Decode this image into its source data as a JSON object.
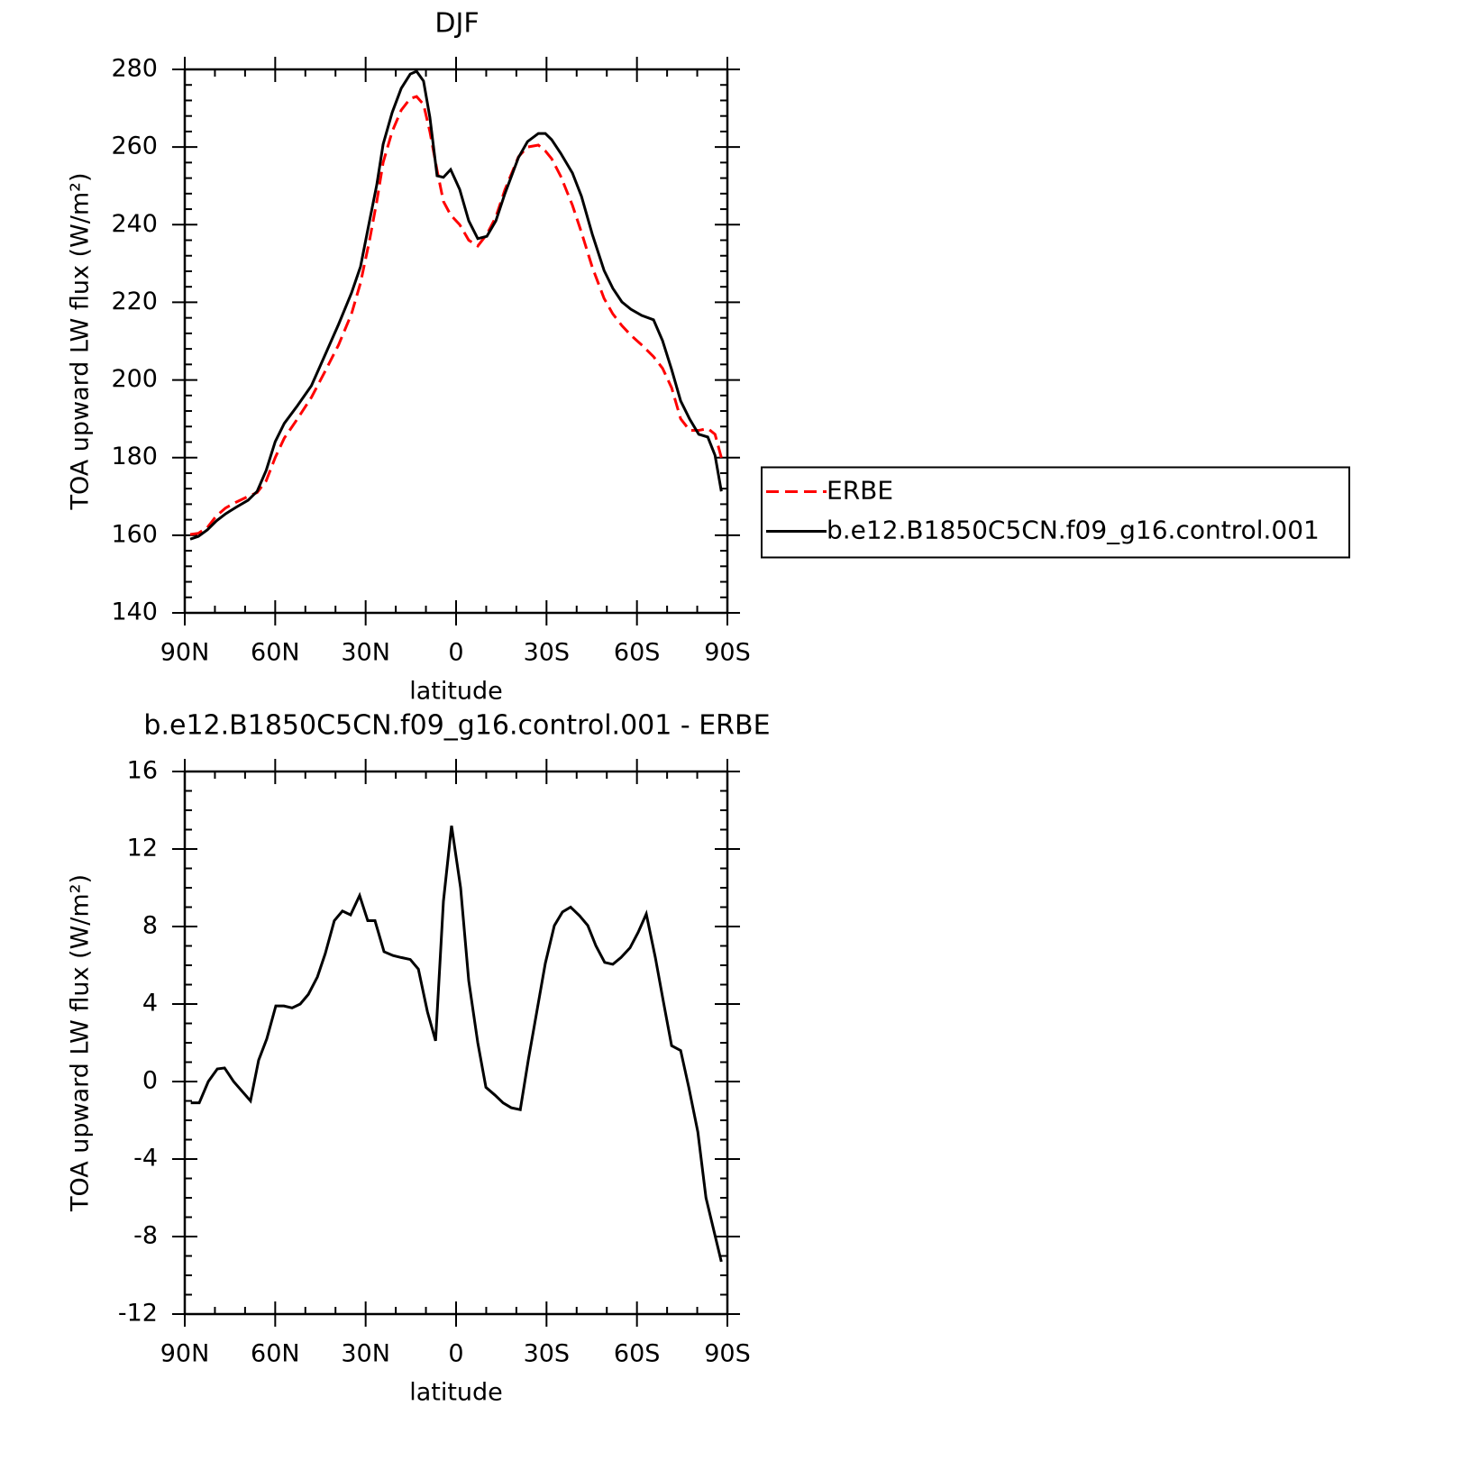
{
  "chart_data": [
    {
      "type": "line",
      "title": "DJF",
      "xlabel": "latitude",
      "ylabel": "TOA upward LW flux (W/m²)",
      "x": [
        88.2,
        85.5,
        82.5,
        79.5,
        76.5,
        73,
        69,
        66,
        63,
        60,
        57,
        52.6,
        48,
        43.6,
        39,
        34.7,
        31.7,
        28.7,
        26.3,
        24.2,
        21.2,
        18.2,
        15.2,
        13.1,
        10.8,
        8.7,
        6.3,
        4.2,
        1.8,
        -1.2,
        -4.2,
        -7.2,
        -10.2,
        -13.2,
        -16.2,
        -20.7,
        -23.7,
        -27.3,
        -29.6,
        -31.7,
        -34.7,
        -38.6,
        -41.6,
        -45.2,
        -49.1,
        -52,
        -55,
        -58,
        -61.6,
        -65.5,
        -68.5,
        -71.5,
        -74.5,
        -77.5,
        -80.5,
        -83.5,
        -85.9,
        -88
      ],
      "series": [
        {
          "name": "ERBE",
          "color": "#ff0000",
          "dash": true,
          "values": [
            160.2,
            160.5,
            162,
            165,
            167,
            168.5,
            170,
            171,
            174,
            180,
            185,
            190,
            195.5,
            202,
            209,
            217,
            225,
            236,
            246,
            256,
            264,
            269.5,
            272.5,
            273,
            271,
            264,
            254,
            246,
            242.5,
            240,
            236,
            234.5,
            237.5,
            242,
            249,
            257.5,
            260,
            260.5,
            259,
            257,
            252.5,
            245,
            238,
            229,
            221,
            217,
            214,
            211.5,
            209,
            206,
            203,
            198,
            190,
            187,
            187,
            187.5,
            186,
            180
          ]
        },
        {
          "name": "b.e12.B1850C5CN.f09_g16.control.001",
          "color": "#000000",
          "dash": false,
          "values": [
            159.0,
            159.7,
            161.4,
            163.7,
            165.5,
            167.2,
            169.0,
            171.3,
            176.7,
            184.1,
            188.8,
            193.4,
            198.5,
            206.2,
            214.3,
            222.4,
            229.2,
            241.0,
            250.3,
            260.7,
            268.9,
            275.1,
            278.8,
            279.5,
            277,
            267.7,
            252.6,
            252.2,
            254.2,
            249.1,
            241,
            236.4,
            237,
            241,
            248,
            257.3,
            261.4,
            263.5,
            263.5,
            261.9,
            258.4,
            253.3,
            247.3,
            237.5,
            228.2,
            223.6,
            220.1,
            218.2,
            216.6,
            215.5,
            210.1,
            202.7,
            194.6,
            189.9,
            186,
            185.3,
            180.6,
            171.3
          ]
        }
      ],
      "xlim": [
        90,
        -90
      ],
      "xticks": [
        {
          "value": 90,
          "label": "90N"
        },
        {
          "value": 60,
          "label": "60N"
        },
        {
          "value": 30,
          "label": "30N"
        },
        0,
        {
          "value": -30,
          "label": "30S"
        },
        {
          "value": -60,
          "label": "60S"
        },
        {
          "value": -90,
          "label": "90S"
        }
      ],
      "ylim": [
        140,
        280
      ],
      "yticks": [
        140,
        160,
        180,
        200,
        220,
        240,
        260,
        280
      ],
      "xminor": 3,
      "yminor": 5,
      "legend": "outside-right"
    },
    {
      "type": "line",
      "title": "b.e12.B1850C5CN.f09_g16.control.001 - ERBE",
      "xlabel": "latitude",
      "ylabel": "TOA upward LW flux (W/m²)",
      "x": [
        88,
        85.2,
        82.2,
        79.2,
        76.8,
        73.8,
        68.2,
        65.5,
        62.8,
        59.8,
        57.1,
        54.4,
        51.7,
        49,
        46,
        43.4,
        40.4,
        37.7,
        35,
        32,
        29.3,
        26.9,
        23.9,
        20.9,
        18.2,
        15.2,
        12.5,
        9.5,
        6.8,
        4.2,
        1.5,
        -1.5,
        -4.2,
        -7.2,
        -9.9,
        -12.9,
        -15.6,
        -18.3,
        -21.3,
        -24,
        -27,
        -29.6,
        -32.6,
        -35.3,
        -38,
        -41,
        -43.7,
        -46.4,
        -49.3,
        -52,
        -54.7,
        -57.7,
        -60.4,
        -63.1,
        -66.1,
        -68.8,
        -71.5,
        -74.5,
        -77.2,
        -80.2,
        -82.9,
        -88
      ],
      "series": [
        {
          "color": "#000000",
          "dash": false,
          "values": [
            -1.1,
            -1.1,
            0,
            0.65,
            0.7,
            0,
            -1.0,
            1.1,
            2.2,
            3.9,
            3.9,
            3.8,
            4.0,
            4.5,
            5.4,
            6.6,
            8.3,
            8.8,
            8.6,
            9.6,
            8.3,
            8.3,
            6.7,
            6.5,
            6.4,
            6.3,
            5.8,
            3.6,
            2.1,
            9.3,
            13.2,
            10.0,
            5.2,
            2.0,
            -0.3,
            -0.7,
            -1.1,
            -1.35,
            -1.45,
            1.15,
            3.8,
            6.1,
            8.05,
            8.75,
            9.0,
            8.55,
            8.05,
            7.0,
            6.15,
            6.05,
            6.4,
            6.9,
            7.7,
            8.65,
            6.4,
            4.1,
            1.85,
            1.6,
            -0.3,
            -2.6,
            -6.0,
            -9.3
          ]
        }
      ],
      "xlim": [
        90,
        -90
      ],
      "xticks": [
        {
          "value": 90,
          "label": "90N"
        },
        {
          "value": 60,
          "label": "60N"
        },
        {
          "value": 30,
          "label": "30N"
        },
        0,
        {
          "value": -30,
          "label": "30S"
        },
        {
          "value": -60,
          "label": "60S"
        },
        {
          "value": -90,
          "label": "90S"
        }
      ],
      "ylim": [
        -12,
        16
      ],
      "yticks": [
        -12,
        -8,
        -4,
        0,
        4,
        8,
        12,
        16
      ],
      "xminor": 3,
      "yminor": 4
    }
  ]
}
